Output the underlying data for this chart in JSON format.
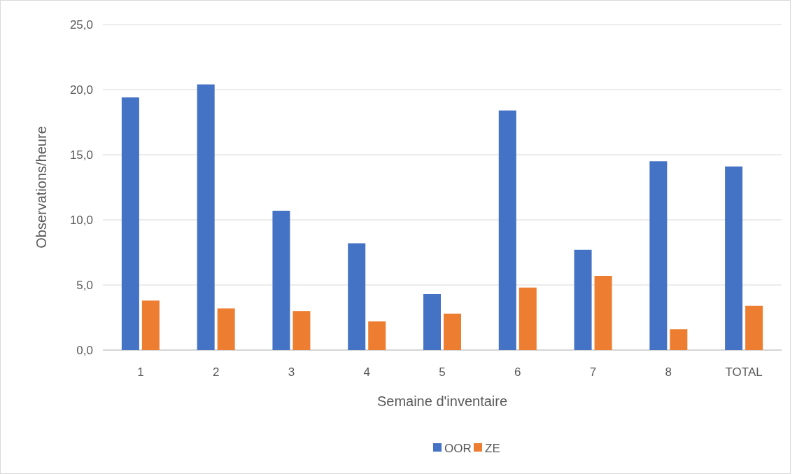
{
  "chart_data": {
    "type": "bar",
    "xlabel": "Semaine d'inventaire",
    "ylabel": "Observations/heure",
    "categories": [
      "1",
      "2",
      "3",
      "4",
      "5",
      "6",
      "7",
      "8",
      "TOTAL"
    ],
    "series": [
      {
        "name": "OOR",
        "color": "#4472c4",
        "values": [
          19.4,
          20.4,
          10.7,
          8.2,
          4.3,
          18.4,
          7.7,
          14.5,
          14.1
        ]
      },
      {
        "name": "ZE",
        "color": "#ed7d31",
        "values": [
          3.8,
          3.2,
          3.0,
          2.2,
          2.8,
          4.8,
          5.7,
          1.6,
          3.4
        ]
      }
    ],
    "ylim": [
      0,
      25
    ],
    "yticks": [
      {
        "value": 0,
        "label": "0,0"
      },
      {
        "value": 5,
        "label": "5,0"
      },
      {
        "value": 10,
        "label": "10,0"
      },
      {
        "value": 15,
        "label": "15,0"
      },
      {
        "value": 20,
        "label": "20,0"
      },
      {
        "value": 25,
        "label": "25,0"
      }
    ],
    "grid": "y",
    "legend": "bottom"
  }
}
